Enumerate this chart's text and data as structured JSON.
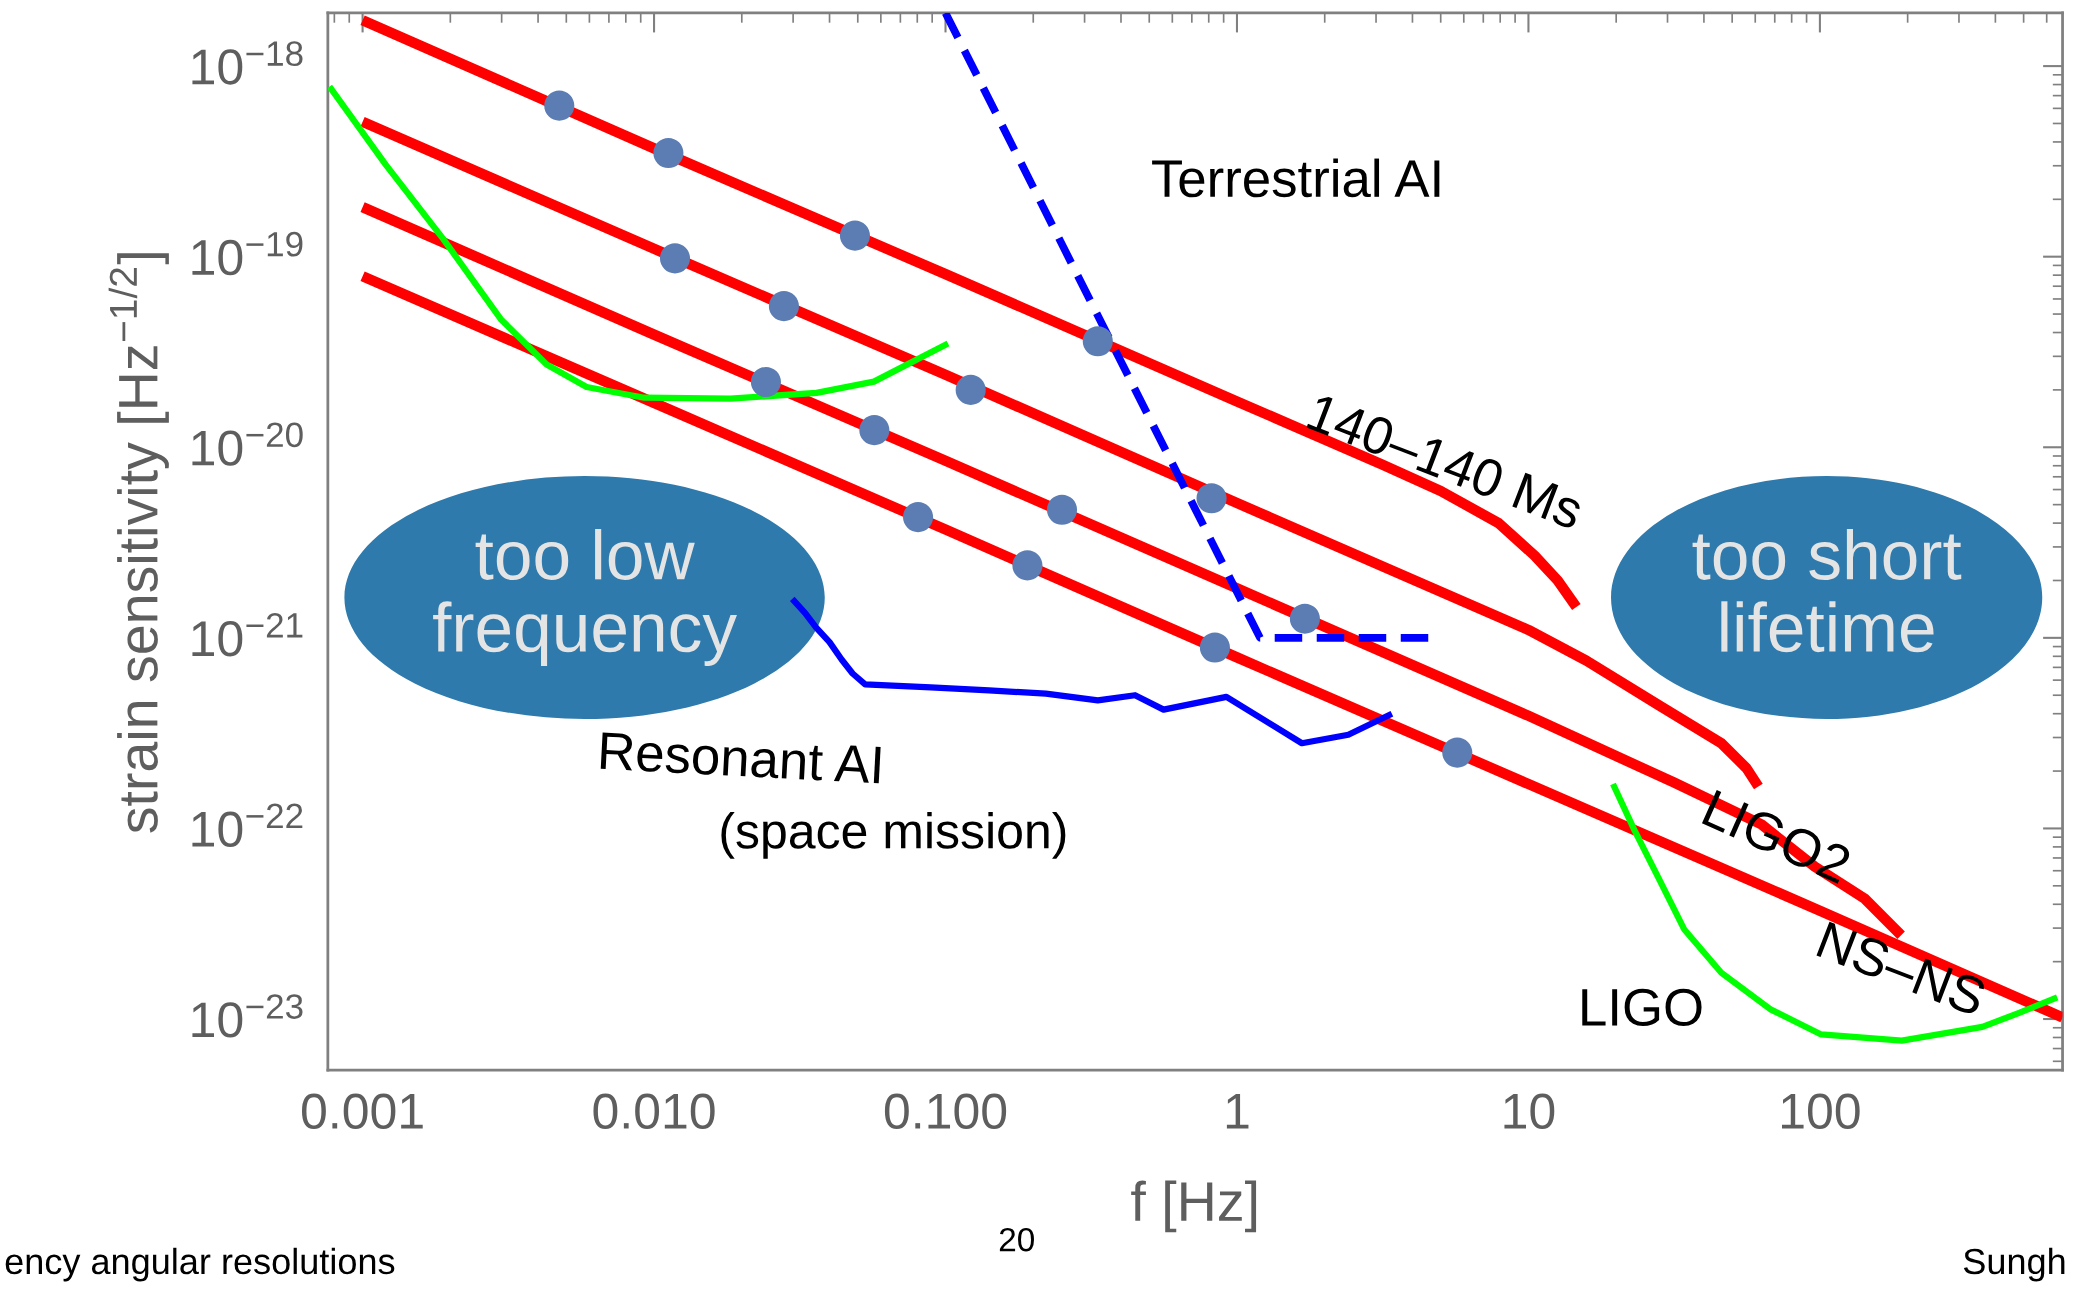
{
  "chart_data": {
    "type": "line",
    "log": "xy",
    "xlabel": "f [Hz]",
    "ylabel": "strain sensitivity [Hz$^{−1/2}$]",
    "xlim": [
      0.00076,
      680
    ],
    "ylim": [
      5.4e-24,
      1.9e-18
    ],
    "xticks": [
      0.001,
      {
        "value": 0.01,
        "label": "0.010"
      },
      {
        "value": 0.1,
        "label": "0.100"
      },
      1,
      10,
      100
    ],
    "yticks": [
      {
        "value": 1e-23,
        "label": "10$^{−23}$"
      },
      {
        "value": 1e-22,
        "label": "10$^{−22}$"
      },
      {
        "value": 1e-21,
        "label": "10$^{−21}$"
      },
      {
        "value": 1e-20,
        "label": "10$^{−20}$"
      },
      {
        "value": 1e-19,
        "label": "10$^{−19}$"
      },
      {
        "value": 1e-18,
        "label": "10$^{−18}$"
      }
    ],
    "series": [
      {
        "color": "#ff0000",
        "x": [
          0.001,
          0.01,
          0.1,
          1,
          3.16,
          5.0,
          7.9,
          10.5,
          12.6,
          14.6
        ],
        "values": [
          1.74e-18,
          3.7e-19,
          8.1e-20,
          1.74e-20,
          8.1e-21,
          5.9e-21,
          4e-21,
          2.7e-21,
          2e-21,
          1.45e-21
        ]
      },
      {
        "color": "#ff0000",
        "x": [
          0.001,
          0.01,
          0.1,
          1,
          10,
          15.8,
          28.2,
          45.9,
          56,
          61.5
        ],
        "values": [
          5.1e-19,
          1.1e-19,
          2.4e-20,
          5.1e-21,
          1.1e-21,
          7.6e-22,
          4.4e-22,
          2.8e-22,
          2.07e-22,
          1.66e-22
        ]
      },
      {
        "color": "#ff0000",
        "x": [
          0.001,
          0.01,
          0.1,
          1,
          10,
          31.6,
          63,
          96,
          142,
          190
        ],
        "values": [
          1.82e-19,
          3.9e-20,
          8.5e-21,
          1.82e-21,
          3.9e-22,
          1.74e-22,
          1.05e-22,
          6.3e-23,
          4.3e-23,
          2.75e-23
        ]
      },
      {
        "color": "#ff0000",
        "x": [
          0.001,
          0.01,
          0.1,
          1,
          10,
          100,
          680
        ],
        "values": [
          7.9e-20,
          1.71e-20,
          3.7e-21,
          7.9e-22,
          1.71e-22,
          3.7e-23,
          1.02e-23
        ]
      },
      {
        "color": "#00ff00",
        "x": [
          0.00077,
          0.0012,
          0.00189,
          0.00298,
          0.00428,
          0.00587,
          0.00925,
          0.0183,
          0.0361,
          0.0568,
          0.102
        ],
        "values": [
          7.8e-19,
          3.04e-19,
          1.24e-19,
          4.7e-20,
          2.72e-20,
          2.07e-20,
          1.82e-20,
          1.8e-20,
          1.93e-20,
          2.21e-20,
          3.5e-20
        ]
      },
      {
        "color": "#00ff00",
        "x": [
          19.5,
          23.1,
          28.1,
          34.2,
          45.9,
          68,
          101,
          191,
          361,
          485,
          652
        ],
        "values": [
          1.71e-22,
          9.8e-23,
          5.4e-23,
          2.96e-23,
          1.75e-23,
          1.12e-23,
          8.3e-24,
          7.7e-24,
          9.1e-24,
          1.08e-23,
          1.3e-23
        ]
      },
      {
        "color": "#0000ff",
        "line_style": "dashed",
        "x": [
          0.1,
          1.2,
          4.7
        ],
        "values": [
          1.9e-18,
          1e-21,
          1e-21
        ]
      },
      {
        "color": "#0000ff",
        "x": [
          0.0298,
          0.033,
          0.036,
          0.04,
          0.044,
          0.048,
          0.053,
          0.089,
          0.141,
          0.221,
          0.333,
          0.447,
          0.56,
          0.92,
          1.67,
          2.41,
          3.4
        ],
        "values": [
          1.6e-21,
          1.35e-21,
          1.13e-21,
          9.5e-22,
          7.7e-22,
          6.5e-22,
          5.7e-22,
          5.5e-22,
          5.3e-22,
          5.1e-22,
          4.7e-22,
          5e-22,
          4.2e-22,
          4.9e-22,
          2.8e-22,
          3.1e-22,
          4e-22
        ]
      },
      {
        "type": "scatter",
        "color": "#5b7db3",
        "marker": "circle",
        "x": [
          0.00473,
          0.0112,
          0.0489,
          0.333,
          0.0118,
          0.0279,
          0.122,
          0.818,
          0.0242,
          0.057,
          0.251,
          1.71,
          0.0805,
          0.191,
          0.84,
          5.7
        ],
        "values": [
          6.2e-19,
          3.5e-19,
          1.29e-19,
          3.6e-20,
          9.8e-20,
          5.5e-20,
          2e-20,
          5.4e-21,
          2.2e-20,
          1.23e-20,
          4.7e-21,
          1.26e-21,
          4.3e-21,
          2.4e-21,
          8.9e-22,
          2.5e-22
        ]
      }
    ],
    "annotations": [
      "Terrestrial AI",
      "140–140 Ms",
      "LIGO2",
      "NS–NS",
      "LIGO",
      "Resonant AI",
      "(space mission)",
      "too low\nfrequency",
      "too short\nlifetime",
      "ency angular resolutions",
      "20",
      "Sungh"
    ]
  }
}
